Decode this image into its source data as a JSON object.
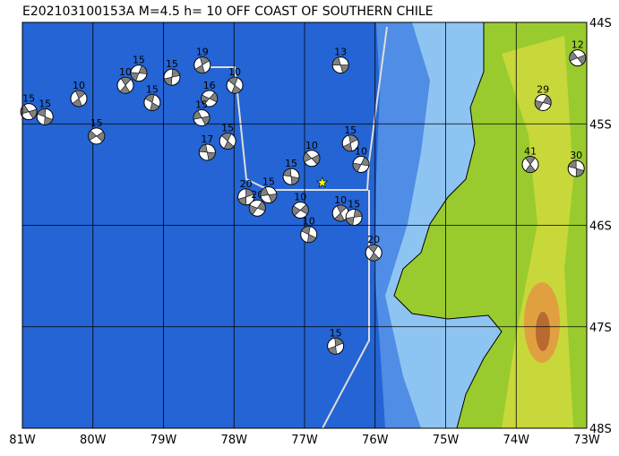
{
  "title": "E202103100153A M=4.5 h= 10 OFF COAST OF SOUTHERN CHILE",
  "lon_ticks": [
    {
      "value": -81,
      "label": "81W"
    },
    {
      "value": -80,
      "label": "80W"
    },
    {
      "value": -79,
      "label": "79W"
    },
    {
      "value": -78,
      "label": "78W"
    },
    {
      "value": -77,
      "label": "77W"
    },
    {
      "value": -76,
      "label": "76W"
    },
    {
      "value": -75,
      "label": "75W"
    },
    {
      "value": -74,
      "label": "74W"
    },
    {
      "value": -73,
      "label": "73W"
    }
  ],
  "lat_ticks": [
    {
      "value": -44,
      "label": "44S"
    },
    {
      "value": -45,
      "label": "45S"
    },
    {
      "value": -46,
      "label": "46S"
    },
    {
      "value": -47,
      "label": "47S"
    },
    {
      "value": -48,
      "label": "48S"
    }
  ],
  "epicenter": {
    "lon": -76.75,
    "lat": -45.58
  },
  "events": [
    {
      "label": "13",
      "lon": -76.49,
      "lat": -44.42
    },
    {
      "label": "10",
      "lon": -77.99,
      "lat": -44.62
    },
    {
      "label": "19",
      "lon": -78.45,
      "lat": -44.42
    },
    {
      "label": "15",
      "lon": -79.35,
      "lat": -44.5
    },
    {
      "label": "15",
      "lon": -79.95,
      "lat": -45.12
    },
    {
      "label": "17",
      "lon": -78.38,
      "lat": -45.28
    },
    {
      "label": "15",
      "lon": -78.09,
      "lat": -45.17
    },
    {
      "label": "15",
      "lon": -76.35,
      "lat": -45.19
    },
    {
      "label": "10",
      "lon": -76.2,
      "lat": -45.4
    },
    {
      "label": "10",
      "lon": -76.9,
      "lat": -45.34
    },
    {
      "label": "15",
      "lon": -77.19,
      "lat": -45.52
    },
    {
      "label": "20",
      "lon": -76.02,
      "lat": -46.27
    },
    {
      "label": "15",
      "lon": -76.56,
      "lat": -47.19
    },
    {
      "label": "29",
      "lon": -73.62,
      "lat": -44.79
    },
    {
      "label": "12",
      "lon": -73.13,
      "lat": -44.35
    },
    {
      "label": "30",
      "lon": -73.15,
      "lat": -45.44
    },
    {
      "label": "41",
      "lon": -73.8,
      "lat": -45.4
    },
    {
      "label": "20",
      "lon": -77.83,
      "lat": -45.72
    },
    {
      "label": "20",
      "lon": -77.67,
      "lat": -45.83
    },
    {
      "label": "15",
      "lon": -80.91,
      "lat": -44.88
    },
    {
      "label": "15",
      "lon": -80.68,
      "lat": -44.93
    },
    {
      "label": "10",
      "lon": -79.54,
      "lat": -44.62
    },
    {
      "label": "15",
      "lon": -78.88,
      "lat": -44.54
    },
    {
      "label": "16",
      "lon": -78.35,
      "lat": -44.75
    },
    {
      "label": "15",
      "lon": -78.46,
      "lat": -44.94
    },
    {
      "label": "10",
      "lon": -76.94,
      "lat": -46.09
    },
    {
      "label": "10",
      "lon": -76.49,
      "lat": -45.88
    },
    {
      "label": "15",
      "lon": -76.3,
      "lat": -45.92
    },
    {
      "label": "10",
      "lon": -77.06,
      "lat": -45.85
    },
    {
      "label": "15",
      "lon": -77.51,
      "lat": -45.7
    },
    {
      "label": "15",
      "lon": -79.16,
      "lat": -44.79
    },
    {
      "label": "10",
      "lon": -80.2,
      "lat": -44.75
    }
  ]
}
